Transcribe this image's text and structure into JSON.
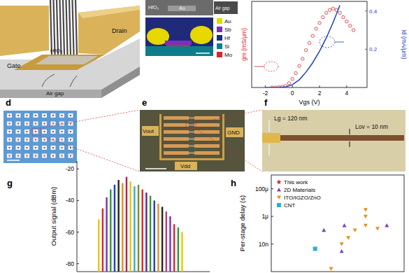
{
  "panel_letters": [
    "d",
    "e",
    "f",
    "g",
    "h"
  ],
  "schematic": {
    "labels": [
      "Drain",
      "HfO₂",
      "Gate",
      "Air gap"
    ]
  },
  "sem": {
    "labels": [
      "HfO₂",
      "Au",
      "Air gap"
    ],
    "element_legend": [
      {
        "name": "Au",
        "color": "#e6d800"
      },
      {
        "name": "Sb",
        "color": "#7b2fbe"
      },
      {
        "name": "Hf",
        "color": "#1f2a7a"
      },
      {
        "name": "Si",
        "color": "#0d7d8c"
      },
      {
        "name": "Mo",
        "color": "#d9262c"
      }
    ]
  },
  "micrograph": {
    "labels": [
      "Vout",
      "GND",
      "Vdd"
    ]
  },
  "zoom": {
    "labels": [
      "Lg = 120 nm",
      "Lov = 10 nm"
    ]
  },
  "chart_data": [
    {
      "type": "line",
      "x_label": "Vgs (V)",
      "y_label": "gm (mS/μm)",
      "y2_label": "Id (mA/μm)",
      "xlim": [
        -3,
        5.5
      ],
      "xticks": [
        -2,
        0,
        2,
        4
      ],
      "ylim": [
        0,
        0.6
      ],
      "y2lim": [
        0,
        0.45
      ],
      "y2ticks": [
        0.2,
        0.4
      ],
      "series": [
        {
          "type": "scatter",
          "marker": "circle",
          "color": "#d9262c",
          "x": [
            -1.5,
            -1.25,
            -1,
            -0.75,
            -0.5,
            -0.25,
            0,
            0.25,
            0.5,
            0.75,
            1,
            1.25,
            1.5,
            1.75,
            2,
            2.25,
            2.5,
            2.75,
            3,
            3.25,
            3.5,
            3.75,
            4,
            4.25,
            4.5
          ],
          "values": [
            0,
            0,
            0.002,
            0.005,
            0.01,
            0.03,
            0.06,
            0.1,
            0.15,
            0.2,
            0.26,
            0.31,
            0.36,
            0.41,
            0.45,
            0.49,
            0.52,
            0.54,
            0.55,
            0.54,
            0.52,
            0.49,
            0.46,
            0.43,
            0.4
          ]
        },
        {
          "type": "line",
          "color": "#1f3fbf",
          "axis": "y2",
          "x": [
            -2,
            -1.5,
            -1,
            -0.5,
            0,
            0.5,
            1,
            1.5,
            2,
            2.5,
            3,
            3.5
          ],
          "values": [
            0,
            0,
            0.001,
            0.003,
            0.015,
            0.04,
            0.08,
            0.13,
            0.19,
            0.26,
            0.34,
            0.43
          ]
        }
      ]
    },
    {
      "type": "bar",
      "y_label": "Output signal (dBm)",
      "categories": [
        null,
        null,
        null,
        null,
        null,
        null,
        null,
        null,
        null,
        null,
        null,
        null,
        null,
        null,
        null,
        null,
        null,
        null,
        null,
        null,
        null,
        null
      ],
      "values": [
        -52,
        -45,
        -38,
        -33,
        -30,
        -27,
        -29,
        -25,
        -28,
        -31,
        -30,
        -33,
        -35,
        -37,
        -40,
        -42,
        -44,
        -47,
        -50,
        -55,
        -57,
        -60
      ],
      "colors": [
        "#e6c800",
        "#d9262c",
        "#7b2fbe",
        "#2e9a3a",
        "#1f3fbf",
        "#222222",
        "#e8901a",
        "#b01e5a",
        "#e6c800",
        "#2ab0d8",
        "#8a8a20",
        "#d9262c",
        "#5b2a86",
        "#2e9a3a",
        "#1f3fbf",
        "#e8901a",
        "#222222",
        "#c03a8a",
        "#7b2fbe",
        "#d9262c",
        "#2e9a3a",
        "#e6c800"
      ],
      "ylim": [
        -85,
        -15
      ],
      "yticks": [
        -20,
        -40,
        -60,
        -80
      ],
      "tick_labels": "y"
    },
    {
      "type": "scatter",
      "y_label": "Per-stage delay (s)",
      "log": "y",
      "xlim": [
        0,
        10
      ],
      "ylim": [
        1e-10,
        0.001
      ],
      "yticks": [
        {
          "value": 0.0001,
          "label": "100μ"
        },
        {
          "value": 1e-06,
          "label": "1μ"
        },
        {
          "value": 1e-08,
          "label": "10n"
        }
      ],
      "tick_labels": "y",
      "legend": "upper left",
      "series": [
        {
          "name": "This work",
          "color": "#d9262c",
          "marker": "star",
          "x": [],
          "values": []
        },
        {
          "name": "2D Materials",
          "color": "#7b3fc0",
          "marker": "triangle",
          "x": [
            3.96,
            5.3,
            5.5,
            8.7
          ],
          "values": [
            1e-07,
            3e-09,
            2.2e-07,
            2.2e-07
          ]
        },
        {
          "name": "ITO/IGZO/ZnO",
          "color": "#e8901a",
          "marker": "triangle-down",
          "x": [
            4.5,
            5.3,
            5.8,
            6.3,
            7.1,
            7.1,
            7.1,
            8.0
          ],
          "values": [
            1.6e-10,
            1e-08,
            2.8e-08,
            1e-07,
            3e-06,
            1e-06,
            2.2e-07,
            1.3e-07
          ]
        },
        {
          "name": "CNT",
          "color": "#2ab0d8",
          "marker": "square",
          "x": [
            3.3
          ],
          "values": [
            4.5e-09
          ]
        }
      ]
    }
  ]
}
